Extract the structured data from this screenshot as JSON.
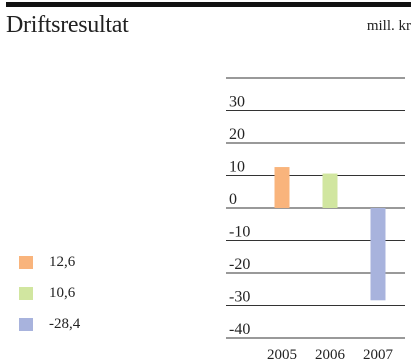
{
  "chart_data": {
    "type": "bar",
    "title": "Driftsresultat",
    "unit": "mill. kr",
    "categories": [
      "2005",
      "2006",
      "2007"
    ],
    "values": [
      12.6,
      10.6,
      -28.4
    ],
    "value_labels": [
      "12,6",
      "10,6",
      "-28,4"
    ],
    "colors": [
      "#f9b47c",
      "#d1e6a0",
      "#a8b3dd"
    ],
    "yticks": [
      30,
      20,
      10,
      0,
      -10,
      -20,
      -30,
      -40
    ],
    "ylim": [
      -40,
      40
    ],
    "legend_position": "bottom-left",
    "grid": true
  }
}
